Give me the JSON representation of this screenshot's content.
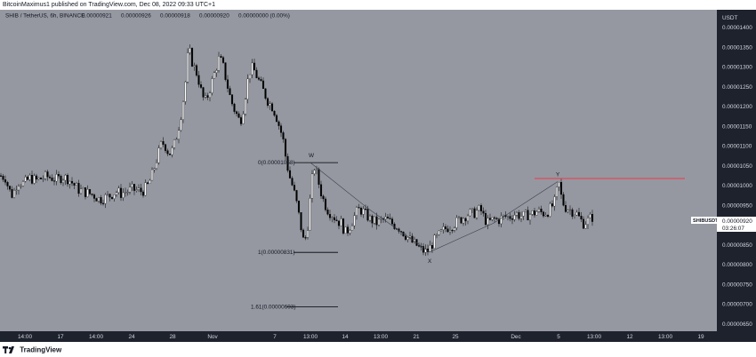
{
  "header": {
    "published": "BitcoinMaximus1 published on TradingView.com, Dec 08, 2022 09:33 UTC+1"
  },
  "symbol_line": {
    "title": "SHIB / TetherUS, 6h, BINANCE",
    "o": "0.00000921",
    "h": "0.00000926",
    "l": "0.00000918",
    "c": "0.00000920",
    "change": "0.00000000 (0.00%)"
  },
  "footer": {
    "brand": "TradingView"
  },
  "colors": {
    "background": "#9598a1",
    "axis_bg": "#1e222d",
    "candle_up": "#ffffff",
    "candle_down": "#000000",
    "resistance_line": "#f23645",
    "price_label_bg": "#ffffff"
  },
  "chart_data": {
    "type": "candlestick",
    "currency_label": "USDT",
    "symbol_tag": "SHIBUSDT",
    "last_price_label": "0.00000920",
    "countdown_label": "03:26:07",
    "yticks": [
      "0.00001400",
      "0.00001350",
      "0.00001300",
      "0.00001250",
      "0.00001200",
      "0.00001150",
      "0.00001100",
      "0.00001050",
      "0.00001000",
      "0.00000950",
      "0.00000900",
      "0.00000850",
      "0.00000800",
      "0.00000750",
      "0.00000700",
      "0.00000650"
    ],
    "ylim": [
      6.45e-06,
      1.42e-05
    ],
    "xticks": [
      "14:00",
      "17",
      "14:00",
      "24",
      "28",
      "Nov",
      "7",
      "13:00",
      "14",
      "13:00",
      "21",
      "25",
      "Dec",
      "5",
      "13:00",
      "12",
      "13:00",
      "19"
    ],
    "fib_levels": [
      {
        "label": "0(0.00001058)",
        "value": 1.058e-05
      },
      {
        "label": "1(0.00000831)",
        "value": 8.31e-06
      },
      {
        "label": "1.61(0.00000693)",
        "value": 6.93e-06
      }
    ],
    "wxy_labels": [
      "W",
      "X",
      "Y"
    ],
    "resistance_value": 1.018e-05,
    "close_path": [
      [
        0,
        1.025e-05
      ],
      [
        6,
        1.02e-05
      ],
      [
        10,
        9.9e-06
      ],
      [
        14,
        9.75e-06
      ],
      [
        20,
        1.01e-05
      ],
      [
        27,
        1.005e-05
      ],
      [
        34,
        1.02e-05
      ],
      [
        40,
        1.012e-05
      ],
      [
        46,
        1.018e-05
      ],
      [
        52,
        1.023e-05
      ],
      [
        58,
        1.02e-05
      ],
      [
        64,
        1.015e-05
      ],
      [
        70,
        1.022e-05
      ],
      [
        76,
        1.018e-05
      ],
      [
        82,
        1.005e-05
      ],
      [
        88,
        9.9e-06
      ],
      [
        94,
        9.85e-06
      ],
      [
        100,
        9.8e-06
      ],
      [
        106,
        9.75e-06
      ],
      [
        112,
        9.65e-06
      ],
      [
        118,
        9.7e-06
      ],
      [
        124,
        9.75e-06
      ],
      [
        130,
        9.85e-06
      ],
      [
        136,
        9.8e-06
      ],
      [
        142,
        9.85e-06
      ],
      [
        148,
        9.9e-06
      ],
      [
        154,
        9.88e-06
      ],
      [
        160,
        9.85e-06
      ],
      [
        166,
        1e-05
      ],
      [
        170,
        1.02e-05
      ],
      [
        174,
        1.05e-05
      ],
      [
        178,
        1.08e-05
      ],
      [
        182,
        1.11e-05
      ],
      [
        186,
        1.1e-05
      ],
      [
        190,
        1.08e-05
      ],
      [
        194,
        1.09e-05
      ],
      [
        198,
        1.12e-05
      ],
      [
        202,
        1.16e-05
      ],
      [
        205,
        1.2e-05
      ],
      [
        208,
        1.25e-05
      ],
      [
        210,
        1.3e-05
      ],
      [
        212,
        1.35e-05
      ],
      [
        215,
        1.32e-05
      ],
      [
        218,
        1.3e-05
      ],
      [
        222,
        1.28e-05
      ],
      [
        226,
        1.24e-05
      ],
      [
        230,
        1.21e-05
      ],
      [
        234,
        1.23e-05
      ],
      [
        238,
        1.26e-05
      ],
      [
        242,
        1.29e-05
      ],
      [
        246,
        1.32e-05
      ],
      [
        250,
        1.31e-05
      ],
      [
        254,
        1.27e-05
      ],
      [
        258,
        1.23e-05
      ],
      [
        262,
        1.2e-05
      ],
      [
        266,
        1.18e-05
      ],
      [
        270,
        1.16e-05
      ],
      [
        274,
        1.2e-05
      ],
      [
        278,
        1.26e-05
      ],
      [
        282,
        1.3e-05
      ],
      [
        286,
        1.29e-05
      ],
      [
        290,
        1.27e-05
      ],
      [
        294,
        1.25e-05
      ],
      [
        298,
        1.23e-05
      ],
      [
        302,
        1.21e-05
      ],
      [
        306,
        1.2e-05
      ],
      [
        310,
        1.18e-05
      ],
      [
        314,
        1.15e-05
      ],
      [
        318,
        1.12e-05
      ],
      [
        322,
        1.06e-05
      ],
      [
        326,
        1.02e-05
      ],
      [
        330,
        9.9e-06
      ],
      [
        334,
        9.5e-06
      ],
      [
        338,
        9e-06
      ],
      [
        342,
        8.5e-06
      ],
      [
        346,
        9e-06
      ],
      [
        350,
        1e-05
      ],
      [
        353,
        1.05e-05
      ],
      [
        356,
        1.03e-05
      ],
      [
        360,
        9.9e-06
      ],
      [
        364,
        9.6e-06
      ],
      [
        368,
        9.4e-06
      ],
      [
        372,
        9.3e-06
      ],
      [
        376,
        9.2e-06
      ],
      [
        380,
        9.1e-06
      ],
      [
        384,
        9.05e-06
      ],
      [
        388,
        8.8e-06
      ],
      [
        392,
        8.9e-06
      ],
      [
        396,
        9.1e-06
      ],
      [
        400,
        9.3e-06
      ],
      [
        404,
        9.4e-06
      ],
      [
        408,
        9.35e-06
      ],
      [
        412,
        9.25e-06
      ],
      [
        416,
        9.15e-06
      ],
      [
        420,
        9.1e-06
      ],
      [
        424,
        9.05e-06
      ],
      [
        428,
        9.1e-06
      ],
      [
        432,
        9.15e-06
      ],
      [
        436,
        9.12e-06
      ],
      [
        440,
        9.05e-06
      ],
      [
        444,
        9e-06
      ],
      [
        448,
        8.95e-06
      ],
      [
        452,
        8.85e-06
      ],
      [
        456,
        8.75e-06
      ],
      [
        460,
        8.65e-06
      ],
      [
        464,
        8.55e-06
      ],
      [
        468,
        8.5e-06
      ],
      [
        472,
        8.4e-06
      ],
      [
        476,
        8.35e-06
      ],
      [
        480,
        8.32e-06
      ],
      [
        484,
        8.45e-06
      ],
      [
        488,
        8.6e-06
      ],
      [
        492,
        8.7e-06
      ],
      [
        496,
        8.8e-06
      ],
      [
        500,
        8.9e-06
      ],
      [
        504,
        8.95e-06
      ],
      [
        508,
        9e-06
      ],
      [
        512,
        9.05e-06
      ],
      [
        516,
        9.12e-06
      ],
      [
        520,
        9.18e-06
      ],
      [
        524,
        9.25e-06
      ],
      [
        528,
        9.3e-06
      ],
      [
        532,
        9.28e-06
      ],
      [
        536,
        9.35e-06
      ],
      [
        540,
        9.4e-06
      ],
      [
        544,
        9.2e-06
      ],
      [
        548,
        9.05e-06
      ],
      [
        552,
        9.1e-06
      ],
      [
        556,
        9.15e-06
      ],
      [
        560,
        9.12e-06
      ],
      [
        564,
        9.18e-06
      ],
      [
        568,
        9.22e-06
      ],
      [
        572,
        9.2e-06
      ],
      [
        576,
        9.25e-06
      ],
      [
        580,
        9.3e-06
      ],
      [
        584,
        9.25e-06
      ],
      [
        588,
        9.22e-06
      ],
      [
        592,
        9.25e-06
      ],
      [
        596,
        9.28e-06
      ],
      [
        600,
        9.3e-06
      ],
      [
        604,
        9.35e-06
      ],
      [
        608,
        9.32e-06
      ],
      [
        612,
        9.3e-06
      ],
      [
        616,
        9.35e-06
      ],
      [
        620,
        9.45e-06
      ],
      [
        624,
        9.6e-06
      ],
      [
        628,
        1.01e-05
      ],
      [
        632,
        9.6e-06
      ],
      [
        636,
        9.45e-06
      ],
      [
        640,
        9.4e-06
      ],
      [
        644,
        9.35e-06
      ],
      [
        648,
        9.3e-06
      ],
      [
        652,
        9.15e-06
      ],
      [
        656,
        9.05e-06
      ],
      [
        660,
        9.1e-06
      ],
      [
        664,
        9.18e-06
      ],
      [
        666,
        9.2e-06
      ]
    ]
  }
}
